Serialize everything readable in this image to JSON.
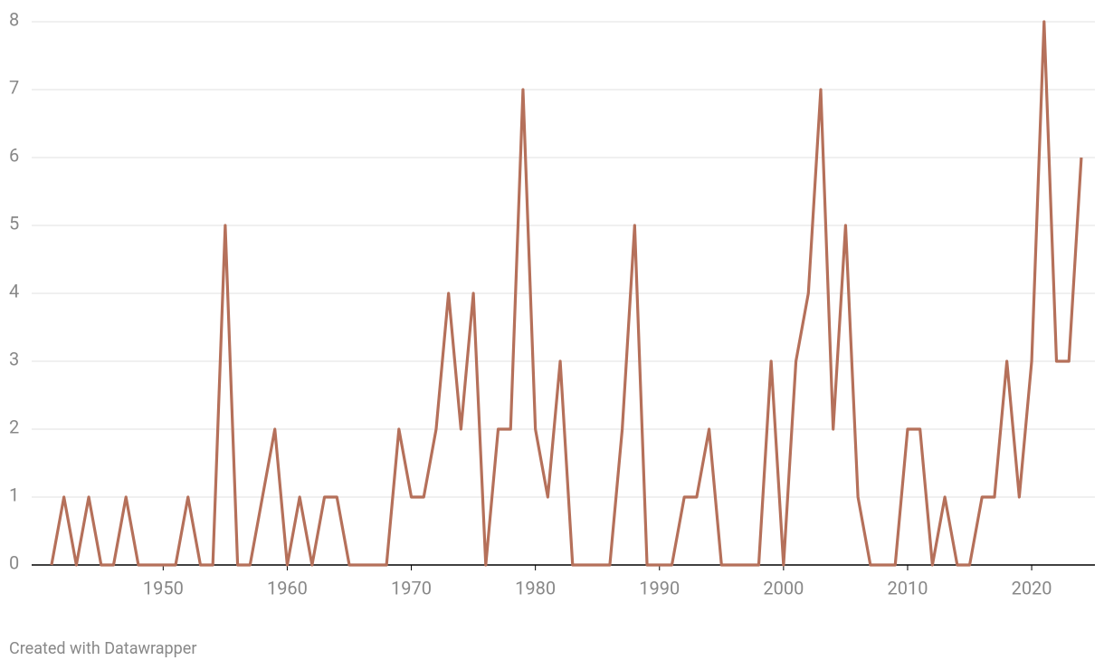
{
  "chart_data": {
    "type": "line",
    "x": [
      1941,
      1942,
      1943,
      1944,
      1945,
      1946,
      1947,
      1948,
      1949,
      1950,
      1951,
      1952,
      1953,
      1954,
      1955,
      1956,
      1957,
      1958,
      1959,
      1960,
      1961,
      1962,
      1963,
      1964,
      1965,
      1966,
      1967,
      1968,
      1969,
      1970,
      1971,
      1972,
      1973,
      1974,
      1975,
      1976,
      1977,
      1978,
      1979,
      1980,
      1981,
      1982,
      1983,
      1984,
      1985,
      1986,
      1987,
      1988,
      1989,
      1990,
      1991,
      1992,
      1993,
      1994,
      1995,
      1996,
      1997,
      1998,
      1999,
      2000,
      2001,
      2002,
      2003,
      2004,
      2005,
      2006,
      2007,
      2008,
      2009,
      2010,
      2011,
      2012,
      2013,
      2014,
      2015,
      2016,
      2017,
      2018,
      2019,
      2020,
      2021,
      2022,
      2023,
      2024
    ],
    "series": [
      {
        "color": "#b5705a",
        "values": [
          0,
          1,
          0,
          1,
          0,
          0,
          1,
          0,
          0,
          0,
          0,
          1,
          0,
          0,
          5,
          0,
          0,
          1,
          2,
          0,
          1,
          0,
          1,
          1,
          0,
          0,
          0,
          0,
          2,
          1,
          1,
          2,
          4,
          2,
          4,
          0,
          2,
          2,
          7,
          2,
          1,
          3,
          0,
          0,
          0,
          0,
          2,
          5,
          0,
          0,
          0,
          1,
          1,
          2,
          0,
          0,
          0,
          0,
          3,
          0,
          3,
          4,
          7,
          2,
          5,
          1,
          0,
          0,
          0,
          2,
          2,
          0,
          1,
          0,
          0,
          1,
          1,
          3,
          1,
          3,
          8,
          3,
          3,
          6
        ]
      }
    ],
    "xlim": [
      1939.4,
      2025.1
    ],
    "xticks": [
      1950,
      1960,
      1970,
      1980,
      1990,
      2000,
      2010,
      2020
    ],
    "ylim": [
      0,
      8
    ],
    "yticks": [
      0,
      1,
      2,
      3,
      4,
      5,
      6,
      7,
      8
    ],
    "grid": true,
    "footer": "Created with Datawrapper"
  }
}
